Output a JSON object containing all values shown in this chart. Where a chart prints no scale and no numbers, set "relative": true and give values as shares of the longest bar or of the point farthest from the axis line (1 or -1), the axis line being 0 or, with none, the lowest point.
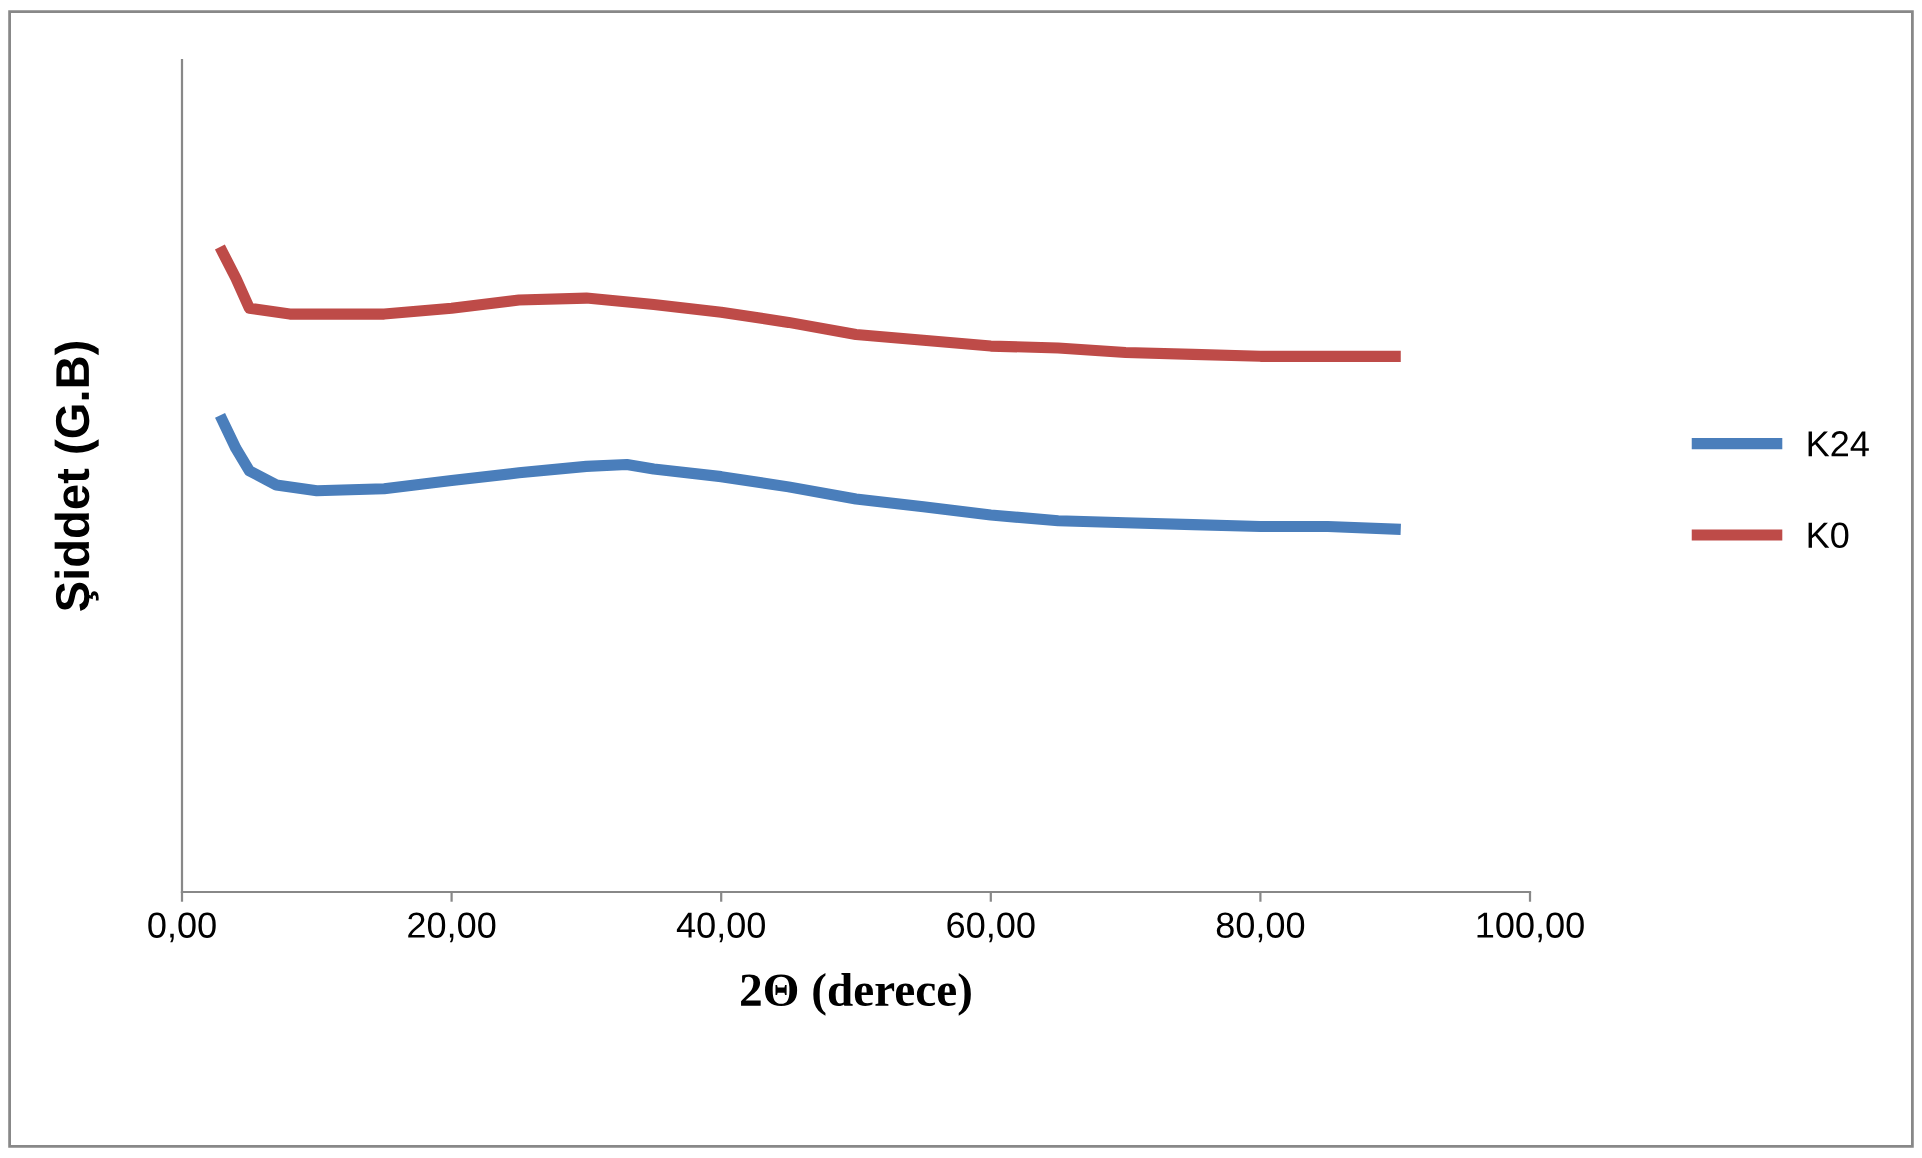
{
  "chart_data": {
    "type": "line",
    "relative": true,
    "xlabel": "2Θ (derece)",
    "ylabel": "Şiddet (G.B)",
    "xlim": [
      0,
      100
    ],
    "xticks": [
      {
        "value": 0,
        "label": "0,00"
      },
      {
        "value": 20,
        "label": "20,00"
      },
      {
        "value": 40,
        "label": "40,00"
      },
      {
        "value": 60,
        "label": "60,00"
      },
      {
        "value": 80,
        "label": "80,00"
      },
      {
        "value": 100,
        "label": "100,00"
      }
    ],
    "grid": false,
    "legend": "right",
    "marker": "none",
    "line_style": "solid",
    "series": [
      {
        "name": "K24",
        "color": "#4a7ebb",
        "x": [
          3,
          4,
          5,
          7,
          10,
          15,
          20,
          25,
          30,
          33,
          35,
          40,
          45,
          50,
          55,
          60,
          65,
          70,
          75,
          80,
          85,
          90
        ],
        "values": [
          0.737,
          0.693,
          0.658,
          0.636,
          0.627,
          0.63,
          0.643,
          0.655,
          0.665,
          0.668,
          0.661,
          0.649,
          0.633,
          0.614,
          0.602,
          0.589,
          0.58,
          0.577,
          0.574,
          0.571,
          0.571,
          0.567
        ]
      },
      {
        "name": "K0",
        "color": "#be4b48",
        "x": [
          3,
          4,
          5,
          8,
          15,
          20,
          25,
          30,
          35,
          40,
          45,
          50,
          55,
          60,
          65,
          70,
          75,
          80,
          85,
          90
        ],
        "values": [
          1.0,
          0.959,
          0.912,
          0.903,
          0.903,
          0.912,
          0.925,
          0.928,
          0.918,
          0.906,
          0.89,
          0.871,
          0.862,
          0.853,
          0.85,
          0.843,
          0.84,
          0.837,
          0.837,
          0.837
        ]
      }
    ]
  }
}
